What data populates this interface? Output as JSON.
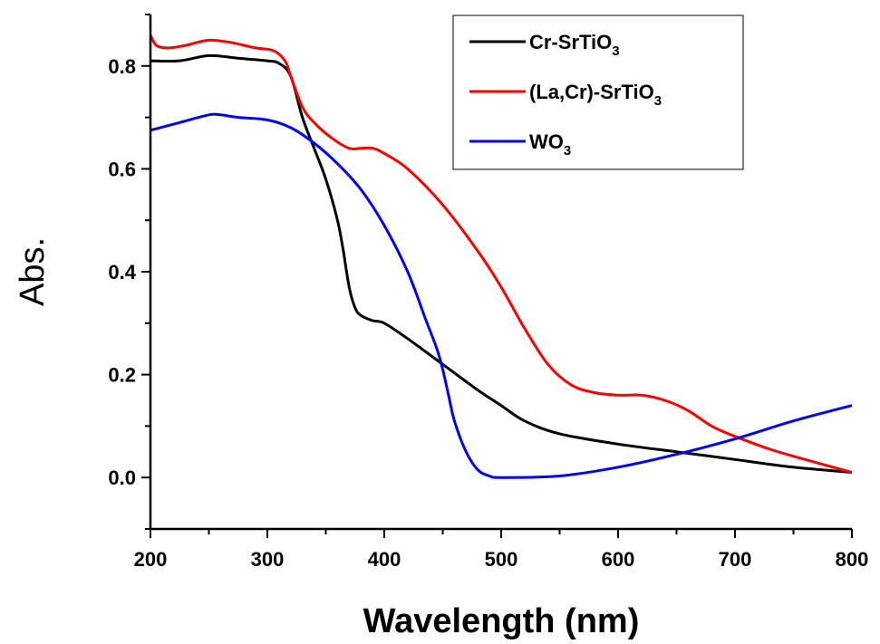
{
  "chart_data": {
    "type": "line",
    "xlabel": "Wavelength (nm)",
    "ylabel": "Abs.",
    "xlim": [
      200,
      800
    ],
    "ylim": [
      -0.1,
      0.9
    ],
    "xticks": [
      200,
      300,
      400,
      500,
      600,
      700,
      800
    ],
    "xtick_labels": [
      "200",
      "300",
      "400",
      "500",
      "600",
      "700",
      "800"
    ],
    "yticks": [
      0.0,
      0.2,
      0.4,
      0.6,
      0.8
    ],
    "ytick_labels": [
      "0.0",
      "0.2",
      "0.4",
      "0.6",
      "0.8"
    ],
    "grid": false,
    "legend_position": "top-right",
    "series": [
      {
        "name": "Cr-SrTiO3",
        "legend_main": "Cr-SrTiO",
        "legend_sub": "3",
        "color": "#000000",
        "x": [
          200,
          225,
          250,
          275,
          300,
          310,
          320,
          330,
          340,
          350,
          360,
          365,
          370,
          375,
          380,
          390,
          400,
          420,
          450,
          480,
          500,
          520,
          550,
          600,
          650,
          700,
          750,
          800
        ],
        "y": [
          0.81,
          0.81,
          0.82,
          0.815,
          0.81,
          0.805,
          0.78,
          0.7,
          0.64,
          0.58,
          0.5,
          0.44,
          0.37,
          0.33,
          0.315,
          0.305,
          0.3,
          0.27,
          0.22,
          0.17,
          0.14,
          0.11,
          0.085,
          0.065,
          0.05,
          0.035,
          0.02,
          0.01
        ]
      },
      {
        "name": "(La,Cr)-SrTiO3",
        "legend_main": "(La,Cr)-SrTiO",
        "legend_sub": "3",
        "color": "#ff0000",
        "x": [
          200,
          205,
          215,
          230,
          250,
          270,
          290,
          305,
          315,
          320,
          330,
          340,
          355,
          370,
          380,
          390,
          400,
          420,
          450,
          480,
          500,
          520,
          540,
          560,
          580,
          600,
          620,
          640,
          660,
          680,
          700,
          730,
          760,
          800
        ],
        "y": [
          0.86,
          0.84,
          0.835,
          0.84,
          0.85,
          0.845,
          0.835,
          0.83,
          0.81,
          0.78,
          0.72,
          0.69,
          0.66,
          0.64,
          0.64,
          0.64,
          0.63,
          0.6,
          0.53,
          0.44,
          0.37,
          0.29,
          0.22,
          0.18,
          0.165,
          0.16,
          0.16,
          0.15,
          0.13,
          0.1,
          0.08,
          0.055,
          0.035,
          0.01
        ]
      },
      {
        "name": "WO3",
        "legend_main": "WO",
        "legend_sub": "3",
        "color": "#0000ff",
        "x": [
          200,
          225,
          250,
          260,
          275,
          300,
          320,
          340,
          360,
          380,
          400,
          420,
          435,
          445,
          450,
          455,
          460,
          470,
          480,
          490,
          500,
          550,
          600,
          650,
          700,
          750,
          800
        ],
        "y": [
          0.675,
          0.69,
          0.705,
          0.705,
          0.7,
          0.695,
          0.68,
          0.65,
          0.61,
          0.56,
          0.49,
          0.4,
          0.31,
          0.25,
          0.21,
          0.16,
          0.11,
          0.05,
          0.015,
          0.003,
          0.0,
          0.003,
          0.02,
          0.045,
          0.075,
          0.11,
          0.14
        ]
      }
    ]
  }
}
